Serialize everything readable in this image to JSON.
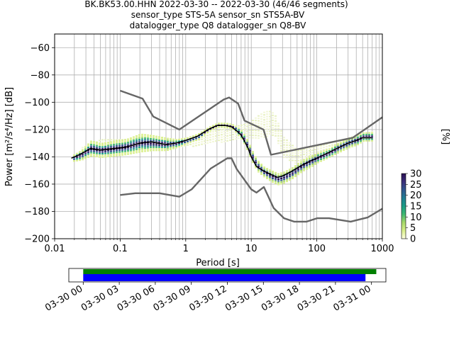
{
  "title_lines": [
    "BK.BK53.00.HHN   2022-03-30 -- 2022-03-30  (46/46 segments)",
    "sensor_type STS-5A sensor_sn STS5A-BV",
    "datalogger_type Q8 datalogger_sn Q8-BV"
  ],
  "chart_data": {
    "type": "heatmap",
    "xlabel": "Period [s]",
    "ylabel": "Power [m²/s⁴/Hz] [dB]",
    "xscale": "log",
    "xlim": [
      0.01,
      1000
    ],
    "ylim": [
      -200,
      -50
    ],
    "xticks": [
      {
        "value": 0.01,
        "label": "0.01"
      },
      {
        "value": 0.1,
        "label": "0.1"
      },
      {
        "value": 1,
        "label": "1"
      },
      {
        "value": 10,
        "label": "10"
      },
      {
        "value": 100,
        "label": "100"
      },
      {
        "value": 1000,
        "label": "1000"
      }
    ],
    "yticks": [
      -60,
      -80,
      -100,
      -120,
      -140,
      -160,
      -180,
      -200
    ],
    "ytick_labels": [
      "−60",
      "−80",
      "−100",
      "−120",
      "−140",
      "−160",
      "−180",
      "−200"
    ],
    "grid": true,
    "colorbar": {
      "label": "[%]",
      "range": [
        0,
        30
      ],
      "ticks": [
        "0",
        "5",
        "10",
        "15",
        "20",
        "25",
        "30"
      ],
      "colors": [
        "#ffffe0",
        "#d9ef8b",
        "#a6d96a",
        "#3fb871",
        "#1a9c85",
        "#217e93",
        "#31578f",
        "#3b2f7a",
        "#2b0f54"
      ]
    },
    "series": [
      {
        "role": "mode",
        "color": "#000000",
        "x": [
          0.018,
          0.025,
          0.035,
          0.05,
          0.08,
          0.12,
          0.2,
          0.3,
          0.5,
          0.7,
          1,
          1.5,
          2.2,
          3,
          4,
          5,
          6,
          7,
          8,
          9,
          10,
          12,
          15,
          20,
          25,
          30,
          40,
          60,
          80,
          100,
          150,
          200,
          300,
          400,
          500,
          700
        ],
        "y": [
          -141,
          -138,
          -134,
          -135,
          -134,
          -133,
          -130,
          -129,
          -131,
          -130,
          -128,
          -125,
          -120,
          -117,
          -117,
          -118,
          -121,
          -124,
          -129,
          -134,
          -140,
          -147,
          -150,
          -153,
          -155,
          -154,
          -151,
          -146,
          -143,
          -141,
          -137,
          -134,
          -130,
          -128,
          -126,
          -126
        ]
      },
      {
        "role": "noise-model-high",
        "color": "#666666",
        "x": [
          0.1,
          0.22,
          0.32,
          0.8,
          3.8,
          4.6,
          6.3,
          7.9,
          15.4,
          20,
          354.8,
          1000
        ],
        "y": [
          -91.5,
          -97.4,
          -110.5,
          -120,
          -98,
          -96.5,
          -101,
          -113.5,
          -120,
          -138.5,
          -126,
          -111
        ]
      },
      {
        "role": "noise-model-low",
        "color": "#666666",
        "x": [
          0.1,
          0.17,
          0.4,
          0.8,
          1.24,
          2.4,
          4.3,
          5,
          6,
          10,
          12,
          15.6,
          21.9,
          31.6,
          45,
          70,
          101,
          154,
          328,
          600,
          1000
        ],
        "y": [
          -168,
          -166.7,
          -166.7,
          -169.2,
          -163.7,
          -148.6,
          -141.1,
          -141.1,
          -149,
          -163.8,
          -166.2,
          -162.1,
          -177.5,
          -185,
          -187.5,
          -187.5,
          -185,
          -185,
          -187.5,
          -184.4,
          -178
        ]
      }
    ],
    "density_bands": [
      {
        "role": "main",
        "x": [
          0.018,
          0.025,
          0.035,
          0.05,
          0.08,
          0.12,
          0.2,
          0.3,
          0.5,
          0.7,
          1,
          1.5,
          2.2,
          3,
          4,
          5,
          6,
          7,
          8,
          9,
          10,
          12,
          15,
          20,
          25,
          30,
          40,
          60,
          80,
          100,
          150,
          200,
          300,
          400,
          500,
          700
        ],
        "y_low": [
          -144,
          -143,
          -140,
          -141,
          -140,
          -139,
          -137,
          -136,
          -136,
          -134,
          -131,
          -128,
          -122,
          -119,
          -119,
          -120,
          -124,
          -128,
          -133,
          -139,
          -144,
          -151,
          -155,
          -159,
          -161,
          -160,
          -157,
          -151,
          -148,
          -145,
          -141,
          -138,
          -134,
          -132,
          -129,
          -129
        ],
        "y_high": [
          -139,
          -135,
          -128,
          -130,
          -128,
          -127,
          -123,
          -124,
          -126,
          -127,
          -126,
          -123,
          -118,
          -115,
          -115,
          -116,
          -118,
          -121,
          -125,
          -130,
          -135,
          -142,
          -147,
          -150,
          -152,
          -151,
          -148,
          -142,
          -139,
          -137,
          -134,
          -130,
          -126,
          -124,
          -122,
          -122
        ]
      },
      {
        "role": "faint",
        "x": [
          0.025,
          0.05,
          0.1,
          0.2,
          0.4,
          0.6,
          9,
          12,
          15,
          18,
          22,
          30,
          50,
          100,
          200,
          400,
          700
        ],
        "y_low": [
          -136,
          -133,
          -133,
          -132,
          -134,
          -134,
          -126,
          -126,
          -126,
          -124,
          -124,
          -140,
          -145,
          -139,
          -134,
          -130,
          -126
        ],
        "y_high": [
          -133,
          -127,
          -127,
          -126,
          -127,
          -128,
          -115,
          -110,
          -107,
          -106,
          -108,
          -125,
          -135,
          -132,
          -128,
          -124,
          -121
        ]
      }
    ],
    "timeline": {
      "tick_labels": [
        "03-30 00",
        "03-30 03",
        "03-30 06",
        "03-30 09",
        "03-30 12",
        "03-30 15",
        "03-30 18",
        "03-30 21",
        "03-31 00"
      ],
      "range_hours": [
        -1.2,
        25.2
      ],
      "data_availability": {
        "start_hour": 0,
        "end_hour": 24.4,
        "color": "#008000"
      },
      "segments_used": {
        "start_hour": 0,
        "end_hour": 23.5,
        "color": "#0000ff"
      }
    }
  }
}
